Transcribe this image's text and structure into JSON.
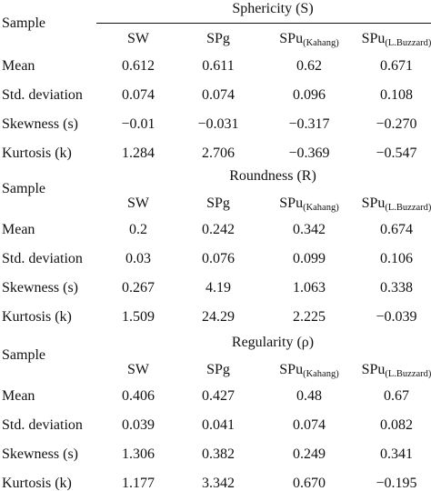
{
  "sample_label": "Sample",
  "row_labels": [
    "Mean",
    "Std. deviation",
    "Skewness (s)",
    "Kurtosis (k)"
  ],
  "sections": [
    {
      "title": "Sphericity (S)",
      "columns": [
        {
          "main": "SW",
          "sub": ""
        },
        {
          "main": "SPg",
          "sub": ""
        },
        {
          "main": "SPu",
          "sub": "(Kahang)"
        },
        {
          "main": "SPu",
          "sub": "(L.Buzzard)"
        }
      ],
      "rows": [
        [
          "0.612",
          "0.611",
          "0.62",
          "0.671"
        ],
        [
          "0.074",
          "0.074",
          "0.096",
          "0.108"
        ],
        [
          "−0.01",
          "−0.031",
          "−0.317",
          "−0.270"
        ],
        [
          "1.284",
          "2.706",
          "−0.369",
          "−0.547"
        ]
      ]
    },
    {
      "title": "Roundness (R)",
      "columns": [
        {
          "main": "SW",
          "sub": ""
        },
        {
          "main": "SPg",
          "sub": ""
        },
        {
          "main": "SPu",
          "sub": "(Kahang)"
        },
        {
          "main": "SPu",
          "sub": "(L.Buzzard)"
        }
      ],
      "rows": [
        [
          "0.2",
          "0.242",
          "0.342",
          "0.674"
        ],
        [
          "0.03",
          "0.076",
          "0.099",
          "0.106"
        ],
        [
          "0.267",
          "4.19",
          "1.063",
          "0.338"
        ],
        [
          "1.509",
          "24.29",
          "2.225",
          "−0.039"
        ]
      ]
    },
    {
      "title": "Regularity (ρ)",
      "columns": [
        {
          "main": "SW",
          "sub": ""
        },
        {
          "main": "SPg",
          "sub": ""
        },
        {
          "main": "SPu",
          "sub": "(Kahang)"
        },
        {
          "main": "SPu",
          "sub": "(L.Buzzard)"
        }
      ],
      "rows": [
        [
          "0.406",
          "0.427",
          "0.48",
          "0.67"
        ],
        [
          "0.039",
          "0.041",
          "0.074",
          "0.082"
        ],
        [
          "1.306",
          "0.382",
          "0.249",
          "0.341"
        ],
        [
          "1.177",
          "3.342",
          "0.670",
          "−0.195"
        ]
      ]
    }
  ]
}
